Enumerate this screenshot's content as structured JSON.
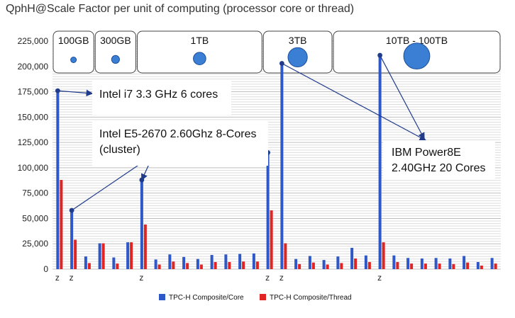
{
  "chart_data": {
    "type": "bar",
    "title": "QphH@Scale Factor per unit of computing (processor core or thread)",
    "ylim": [
      0,
      225000
    ],
    "yticks": [
      "0",
      "25,000",
      "50,000",
      "75,000",
      "100,000",
      "125,000",
      "150,000",
      "175,000",
      "200,000",
      "225,000"
    ],
    "grid": "horizontal",
    "legend_position": "bottom",
    "series": [
      {
        "name": "TPC-H Composite/Core",
        "color": "#2e57c7",
        "values": [
          176000,
          58000,
          12500,
          25500,
          11500,
          26500,
          88000,
          9500,
          14500,
          12000,
          10000,
          14000,
          14500,
          15000,
          15500,
          115000,
          203000,
          10000,
          13000,
          9000,
          12500,
          21000,
          13500,
          211000,
          13500,
          11000,
          10500,
          11000,
          10500,
          13000,
          7000,
          11000
        ]
      },
      {
        "name": "TPC-H Composite/Thread",
        "color": "#e02424",
        "values": [
          88000,
          29000,
          6000,
          25500,
          5500,
          26500,
          44000,
          4500,
          7500,
          6000,
          4500,
          7000,
          7000,
          7500,
          7500,
          58000,
          25500,
          5000,
          6500,
          4500,
          6000,
          10500,
          7000,
          26500,
          7000,
          5500,
          5500,
          5500,
          5000,
          6500,
          3500,
          5500
        ]
      }
    ],
    "z_labels": [
      {
        "index": 0,
        "text": "z"
      },
      {
        "index": 1,
        "text": "z"
      },
      {
        "index": 6,
        "text": "z"
      },
      {
        "index": 15,
        "text": "z"
      },
      {
        "index": 16,
        "text": "z"
      },
      {
        "index": 23,
        "text": "z"
      }
    ],
    "groups": [
      {
        "label": "100GB",
        "bubble_size": 1
      },
      {
        "label": "300GB",
        "bubble_size": 1.4
      },
      {
        "label": "1TB",
        "bubble_size": 2.2
      },
      {
        "label": "3TB",
        "bubble_size": 3.4
      },
      {
        "label": "10TB - 100TB",
        "bubble_size": 4.6
      }
    ],
    "annotations": [
      {
        "lines": [
          "Intel i7 3.3 GHz 6 cores"
        ],
        "points_to": [
          0
        ]
      },
      {
        "lines": [
          "Intel E5-2670 2.60Ghz 8-Cores",
          "(cluster)"
        ],
        "points_to": [
          1,
          6,
          15
        ]
      },
      {
        "lines": [
          "IBM Power8E",
          "2.40GHz 20 Cores"
        ],
        "points_to": [
          16,
          23
        ]
      }
    ]
  }
}
